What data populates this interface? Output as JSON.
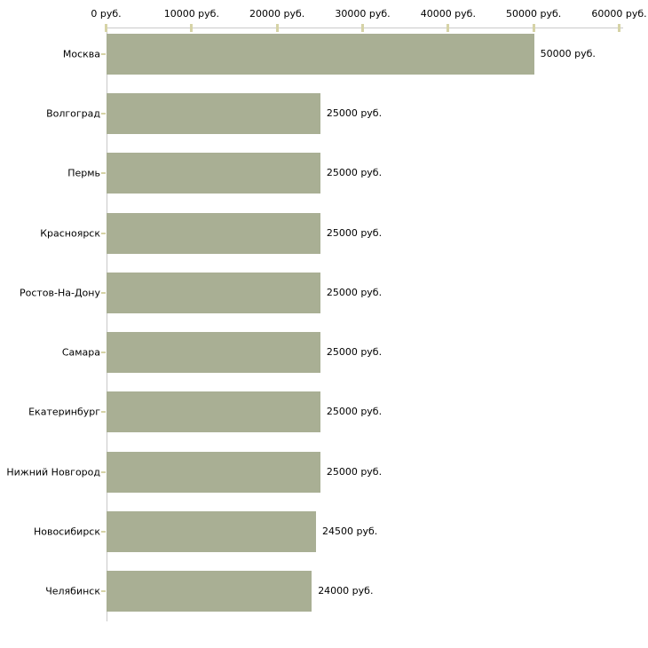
{
  "chart_data": {
    "type": "bar",
    "orientation": "horizontal",
    "categories": [
      "Москва",
      "Волгоград",
      "Пермь",
      "Красноярск",
      "Ростов-На-Дону",
      "Самара",
      "Екатеринбург",
      "Нижний Новгород",
      "Новосибирск",
      "Челябинск"
    ],
    "values": [
      50000,
      25000,
      25000,
      25000,
      25000,
      25000,
      25000,
      25000,
      24500,
      24000
    ],
    "value_labels": [
      "50000 руб.",
      "25000 руб.",
      "25000 руб.",
      "25000 руб.",
      "25000 руб.",
      "25000 руб.",
      "25000 руб.",
      "25000 руб.",
      "24500 руб.",
      "24000 руб."
    ],
    "x_axis": {
      "position": "top",
      "range": [
        0,
        60000
      ],
      "tick_values": [
        0,
        10000,
        20000,
        30000,
        40000,
        50000,
        60000
      ],
      "tick_labels": [
        "0 руб.",
        "10000 руб.",
        "20000 руб.",
        "30000 руб.",
        "40000 руб.",
        "50000 руб.",
        "60000 руб."
      ]
    },
    "grid": false,
    "legend": false,
    "colors": {
      "bar": "#a9af94",
      "axis": "#c9c9c9",
      "tick": "#d6d3a6",
      "text": "#000000",
      "background": "#ffffff"
    }
  }
}
